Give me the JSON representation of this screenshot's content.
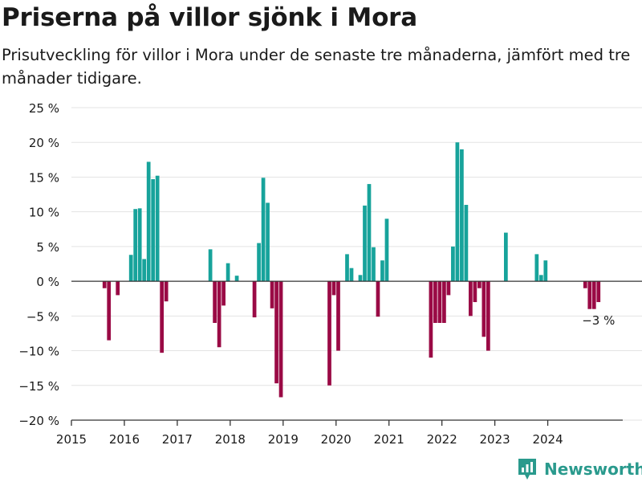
{
  "chart_data": {
    "type": "bar",
    "title": "Priserna på villor sjönk i Mora",
    "subtitle": "Prisutveckling för villor i Mora under de senaste tre månaderna, jämfört med tre månader tidigare.",
    "ylim": [
      -20,
      25
    ],
    "yticks": [
      -20,
      -15,
      -10,
      -5,
      0,
      5,
      10,
      15,
      20,
      25
    ],
    "ytick_labels": [
      "−20 %",
      "−15 %",
      "−10 %",
      "−5 %",
      "0 %",
      "5 %",
      "10 %",
      "15 %",
      "20 %",
      "25 %"
    ],
    "xlim": [
      "2015-01",
      "2025-06"
    ],
    "xticks": [
      "2015-01",
      "2016-01",
      "2017-01",
      "2018-01",
      "2019-01",
      "2020-01",
      "2021-01",
      "2022-01",
      "2023-01",
      "2024-01"
    ],
    "xtick_labels": [
      "2015",
      "2016",
      "2017",
      "2018",
      "2019",
      "2020",
      "2021",
      "2022",
      "2023",
      "2024"
    ],
    "grid": true,
    "colors": {
      "positive": "#17a39b",
      "negative": "#9a0a45"
    },
    "annotation": {
      "x": "2024-12",
      "y": -3,
      "text": "−3 %"
    },
    "series": [
      {
        "x": [
          "2015-08",
          "2015-09",
          "2015-11",
          "2016-02",
          "2016-03",
          "2016-04",
          "2016-05",
          "2016-06",
          "2016-07",
          "2016-08",
          "2016-09",
          "2016-10",
          "2017-08",
          "2017-09",
          "2017-10",
          "2017-11",
          "2017-12",
          "2018-02",
          "2018-06",
          "2018-07",
          "2018-08",
          "2018-09",
          "2018-10",
          "2018-11",
          "2018-12",
          "2019-11",
          "2019-12",
          "2020-01",
          "2020-03",
          "2020-04",
          "2020-06",
          "2020-07",
          "2020-08",
          "2020-09",
          "2020-10",
          "2020-11",
          "2020-12",
          "2021-10",
          "2021-11",
          "2021-12",
          "2022-01",
          "2022-02",
          "2022-03",
          "2022-04",
          "2022-05",
          "2022-06",
          "2022-07",
          "2022-08",
          "2022-09",
          "2022-10",
          "2022-11",
          "2023-03",
          "2023-10",
          "2023-11",
          "2023-12",
          "2024-09",
          "2024-10",
          "2024-11",
          "2024-12"
        ],
        "values": [
          -1,
          -8.5,
          -2,
          3.8,
          10.4,
          10.5,
          3.2,
          17.2,
          14.7,
          15.2,
          -10.3,
          -2.9,
          4.6,
          -6,
          -9.5,
          -3.5,
          2.6,
          0.8,
          -5.2,
          5.5,
          14.9,
          11.3,
          -3.9,
          -14.7,
          -16.7,
          -15,
          -2,
          -10,
          3.9,
          1.9,
          0.9,
          10.9,
          14,
          4.9,
          -5.1,
          3,
          9,
          -11,
          -6,
          -6,
          -6,
          -2,
          5,
          20,
          19,
          11,
          -5,
          -3,
          -1,
          -8,
          -10,
          7,
          3.9,
          0.9,
          3,
          -1,
          -4,
          -4,
          -3
        ]
      }
    ]
  },
  "branding": {
    "name": "Newsworthy",
    "color": "#2a9a8d"
  }
}
